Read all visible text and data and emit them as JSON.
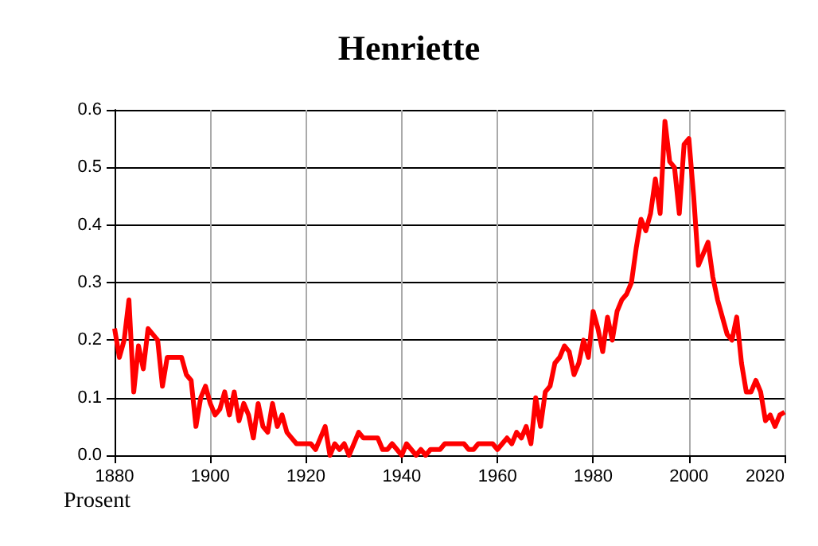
{
  "chart_data": {
    "type": "line",
    "title": "Henriette",
    "ylabel": "Prosent",
    "x": [
      1880,
      1881,
      1882,
      1883,
      1884,
      1885,
      1886,
      1887,
      1888,
      1889,
      1890,
      1891,
      1892,
      1893,
      1894,
      1895,
      1896,
      1897,
      1898,
      1899,
      1900,
      1901,
      1902,
      1903,
      1904,
      1905,
      1906,
      1907,
      1908,
      1909,
      1910,
      1911,
      1912,
      1913,
      1914,
      1915,
      1916,
      1917,
      1918,
      1919,
      1920,
      1921,
      1922,
      1923,
      1924,
      1925,
      1926,
      1927,
      1928,
      1929,
      1930,
      1931,
      1932,
      1933,
      1934,
      1935,
      1936,
      1937,
      1938,
      1939,
      1940,
      1941,
      1942,
      1943,
      1944,
      1945,
      1946,
      1947,
      1948,
      1949,
      1950,
      1951,
      1952,
      1953,
      1954,
      1955,
      1956,
      1957,
      1958,
      1959,
      1960,
      1961,
      1962,
      1963,
      1964,
      1965,
      1966,
      1967,
      1968,
      1969,
      1970,
      1971,
      1972,
      1973,
      1974,
      1975,
      1976,
      1977,
      1978,
      1979,
      1980,
      1981,
      1982,
      1983,
      1984,
      1985,
      1986,
      1987,
      1988,
      1989,
      1990,
      1991,
      1992,
      1993,
      1994,
      1995,
      1996,
      1997,
      1998,
      1999,
      2000,
      2001,
      2002,
      2003,
      2004,
      2005,
      2006,
      2007,
      2008,
      2009,
      2010,
      2011,
      2012,
      2013,
      2014,
      2015,
      2016,
      2017,
      2018,
      2019,
      2020
    ],
    "series": [
      {
        "color": "#ff0000",
        "values": [
          0.22,
          0.17,
          0.2,
          0.27,
          0.11,
          0.19,
          0.15,
          0.22,
          0.21,
          0.2,
          0.12,
          0.17,
          0.17,
          0.17,
          0.17,
          0.14,
          0.13,
          0.05,
          0.1,
          0.12,
          0.09,
          0.07,
          0.08,
          0.11,
          0.07,
          0.11,
          0.06,
          0.09,
          0.07,
          0.03,
          0.09,
          0.05,
          0.04,
          0.09,
          0.05,
          0.07,
          0.04,
          0.03,
          0.02,
          0.02,
          0.02,
          0.02,
          0.01,
          0.03,
          0.05,
          0,
          0.02,
          0.01,
          0.02,
          0,
          0.02,
          0.04,
          0.03,
          0.03,
          0.03,
          0.03,
          0.01,
          0.01,
          0.02,
          0.01,
          0,
          0.02,
          0.01,
          0,
          0.01,
          0,
          0.01,
          0.01,
          0.01,
          0.02,
          0.02,
          0.02,
          0.02,
          0.02,
          0.01,
          0.01,
          0.02,
          0.02,
          0.02,
          0.02,
          0.01,
          0.02,
          0.03,
          0.02,
          0.04,
          0.03,
          0.05,
          0.02,
          0.1,
          0.05,
          0.11,
          0.12,
          0.16,
          0.17,
          0.19,
          0.18,
          0.14,
          0.16,
          0.2,
          0.17,
          0.25,
          0.22,
          0.18,
          0.24,
          0.2,
          0.25,
          0.27,
          0.28,
          0.3,
          0.36,
          0.41,
          0.39,
          0.42,
          0.48,
          0.42,
          0.58,
          0.51,
          0.5,
          0.42,
          0.54,
          0.55,
          0.45,
          0.33,
          0.35,
          0.37,
          0.31,
          0.27,
          0.24,
          0.21,
          0.2,
          0.24,
          0.16,
          0.11,
          0.11,
          0.13,
          0.11,
          0.06,
          0.07,
          0.05,
          0.07,
          0.075
        ]
      }
    ],
    "xlim": [
      1880,
      2020
    ],
    "xticks": [
      1880,
      1900,
      1920,
      1940,
      1960,
      1980,
      2000,
      2020
    ],
    "ylim": [
      0,
      0.6
    ],
    "yticks": [
      {
        "value": 0,
        "label": "0.0"
      },
      0.1,
      0.2,
      0.3,
      0.4,
      0.5,
      0.6
    ],
    "grid": true,
    "marker": "none",
    "line_style": "solid"
  }
}
